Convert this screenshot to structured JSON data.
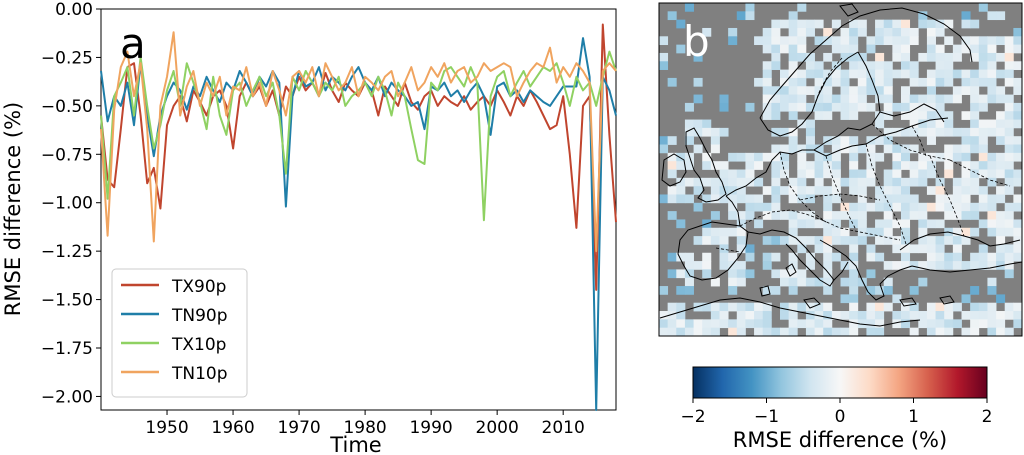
{
  "chart_data": [
    {
      "type": "line",
      "panel_label": "a",
      "xlabel": "Time",
      "ylabel": "RMSE difference (%)",
      "xlim": [
        1940,
        2018
      ],
      "ylim": [
        -2.07,
        0.0
      ],
      "x_ticks": [
        1950,
        1960,
        1970,
        1980,
        1990,
        2000,
        2010
      ],
      "y_ticks": [
        0.0,
        -0.25,
        -0.5,
        -0.75,
        -1.0,
        -1.25,
        -1.5,
        -1.75,
        -2.0
      ],
      "y_tick_labels": [
        "0.00",
        "−0.25",
        "−0.50",
        "−0.75",
        "−1.00",
        "−1.25",
        "−1.50",
        "−1.75",
        "−2.00"
      ],
      "grid": false,
      "legend_position": "lower-left",
      "x": [
        1940,
        1941,
        1942,
        1943,
        1944,
        1945,
        1946,
        1947,
        1948,
        1949,
        1950,
        1951,
        1952,
        1953,
        1954,
        1955,
        1956,
        1957,
        1958,
        1959,
        1960,
        1961,
        1962,
        1963,
        1964,
        1965,
        1966,
        1967,
        1968,
        1969,
        1970,
        1971,
        1972,
        1973,
        1974,
        1975,
        1976,
        1977,
        1978,
        1979,
        1980,
        1981,
        1982,
        1983,
        1984,
        1985,
        1986,
        1987,
        1988,
        1989,
        1990,
        1991,
        1992,
        1993,
        1994,
        1995,
        1996,
        1997,
        1998,
        1999,
        2000,
        2001,
        2002,
        2003,
        2004,
        2005,
        2006,
        2007,
        2008,
        2009,
        2010,
        2011,
        2012,
        2013,
        2014,
        2015,
        2016,
        2017,
        2018
      ],
      "series": [
        {
          "name": "TX90p",
          "color": "#c0452e",
          "values": [
            -0.55,
            -0.88,
            -0.92,
            -0.62,
            -0.3,
            -0.28,
            -0.55,
            -0.9,
            -0.82,
            -1.03,
            -0.6,
            -0.5,
            -0.45,
            -0.58,
            -0.42,
            -0.48,
            -0.55,
            -0.45,
            -0.42,
            -0.5,
            -0.72,
            -0.45,
            -0.38,
            -0.45,
            -0.4,
            -0.5,
            -0.42,
            -0.55,
            -0.4,
            -0.45,
            -0.35,
            -0.42,
            -0.38,
            -0.45,
            -0.33,
            -0.42,
            -0.48,
            -0.38,
            -0.42,
            -0.45,
            -0.38,
            -0.42,
            -0.55,
            -0.4,
            -0.45,
            -0.5,
            -0.38,
            -0.48,
            -0.52,
            -0.45,
            -0.42,
            -0.5,
            -0.45,
            -0.48,
            -0.5,
            -0.45,
            -0.52,
            -0.48,
            -0.45,
            -0.5,
            -0.42,
            -0.48,
            -0.55,
            -0.45,
            -0.5,
            -0.42,
            -0.48,
            -0.55,
            -0.62,
            -0.6,
            -0.45,
            -0.75,
            -1.13,
            -0.5,
            -0.45,
            -1.45,
            -0.08,
            -0.65,
            -1.1
          ]
        },
        {
          "name": "TN90p",
          "color": "#1f7ea8",
          "values": [
            -0.32,
            -0.58,
            -0.45,
            -0.5,
            -0.38,
            -0.6,
            -0.28,
            -0.55,
            -0.76,
            -0.55,
            -0.45,
            -0.38,
            -0.42,
            -0.52,
            -0.4,
            -0.45,
            -0.35,
            -0.42,
            -0.48,
            -0.38,
            -0.42,
            -0.32,
            -0.38,
            -0.45,
            -0.35,
            -0.4,
            -0.32,
            -0.38,
            -1.02,
            -0.45,
            -0.32,
            -0.4,
            -0.38,
            -0.3,
            -0.42,
            -0.35,
            -0.38,
            -0.42,
            -0.35,
            -0.3,
            -0.38,
            -0.42,
            -0.35,
            -0.45,
            -0.38,
            -0.42,
            -0.45,
            -0.5,
            -0.48,
            -0.62,
            -0.4,
            -0.42,
            -0.38,
            -0.45,
            -0.42,
            -0.48,
            -0.42,
            -0.38,
            -0.45,
            -0.65,
            -0.4,
            -0.38,
            -0.45,
            -0.42,
            -0.48,
            -0.42,
            -0.45,
            -0.48,
            -0.5,
            -0.45,
            -0.4,
            -0.4,
            -0.4,
            -0.15,
            -0.35,
            -2.07,
            -0.35,
            -0.42,
            -0.55
          ]
        },
        {
          "name": "TX10p",
          "color": "#8fd162",
          "values": [
            -0.55,
            -0.98,
            -0.45,
            -0.38,
            -0.3,
            -0.55,
            -0.25,
            -0.5,
            -0.72,
            -0.6,
            -0.42,
            -0.32,
            -0.5,
            -0.28,
            -0.38,
            -0.48,
            -0.62,
            -0.35,
            -0.55,
            -0.65,
            -0.42,
            -0.38,
            -0.5,
            -0.42,
            -0.35,
            -0.45,
            -0.38,
            -0.55,
            -0.85,
            -0.35,
            -0.42,
            -0.32,
            -0.38,
            -0.45,
            -0.38,
            -0.42,
            -0.35,
            -0.5,
            -0.45,
            -0.42,
            -0.38,
            -0.45,
            -0.35,
            -0.42,
            -0.55,
            -0.38,
            -0.45,
            -0.62,
            -0.78,
            -0.8,
            -0.38,
            -0.42,
            -0.32,
            -0.3,
            -0.35,
            -0.4,
            -0.3,
            -0.38,
            -1.09,
            -0.45,
            -0.35,
            -0.32,
            -0.45,
            -0.38,
            -0.32,
            -0.4,
            -0.35,
            -0.3,
            -0.32,
            -0.28,
            -0.38,
            -0.5,
            -0.35,
            -0.42,
            -0.38,
            -0.5,
            -0.35,
            -0.22,
            -0.32
          ]
        },
        {
          "name": "TN10p",
          "color": "#f0a45f",
          "values": [
            -0.62,
            -1.17,
            -0.52,
            -0.3,
            -0.22,
            -0.45,
            -0.28,
            -0.62,
            -1.2,
            -0.5,
            -0.35,
            -0.12,
            -0.55,
            -0.4,
            -0.32,
            -0.5,
            -0.38,
            -0.45,
            -0.35,
            -0.55,
            -0.4,
            -0.42,
            -0.3,
            -0.45,
            -0.38,
            -0.5,
            -0.32,
            -0.42,
            -0.55,
            -0.35,
            -0.32,
            -0.38,
            -0.3,
            -0.45,
            -0.28,
            -0.35,
            -0.42,
            -0.38,
            -0.3,
            -0.45,
            -0.35,
            -0.38,
            -0.42,
            -0.35,
            -0.32,
            -0.45,
            -0.38,
            -0.3,
            -0.42,
            -0.38,
            -0.3,
            -0.35,
            -0.28,
            -0.38,
            -0.32,
            -0.3,
            -0.38,
            -0.35,
            -0.28,
            -0.32,
            -0.3,
            -0.28,
            -0.3,
            -0.45,
            -0.38,
            -0.32,
            -0.28,
            -0.3,
            -0.2,
            -0.38,
            -0.3,
            -0.35,
            -0.28,
            -0.32,
            -0.38,
            -1.25,
            -0.32,
            -0.28,
            -0.32
          ]
        }
      ]
    },
    {
      "type": "heatmap",
      "panel_label": "b",
      "colorbar": {
        "label": "RMSE difference (%)",
        "range": [
          -2,
          2
        ],
        "ticks": [
          -2,
          -1,
          0,
          1,
          2
        ],
        "tick_labels": [
          "−2",
          "−1",
          "0",
          "1",
          "2"
        ],
        "colormap": "RdBu_r",
        "stops": [
          "#053061",
          "#2166ac",
          "#4393c3",
          "#92c5de",
          "#d1e5f0",
          "#f7f7f7",
          "#fddbc7",
          "#f4a582",
          "#d6604d",
          "#b2182b",
          "#67001f"
        ]
      },
      "missing_color": "#808080",
      "grid_cols": 42,
      "grid_rows": 40,
      "value_range_present": [
        -1.7,
        0.3
      ]
    }
  ]
}
